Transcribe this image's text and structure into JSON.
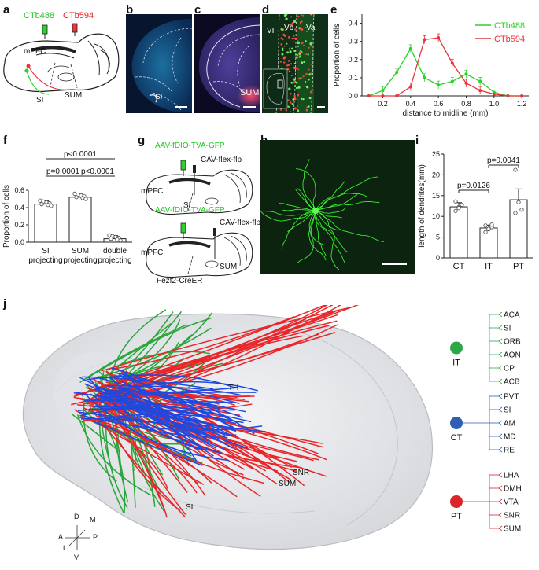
{
  "panels": {
    "a": "a",
    "b": "b",
    "c": "c",
    "d": "d",
    "e": "e",
    "f": "f",
    "g": "g",
    "h": "h",
    "i": "i",
    "j": "j"
  },
  "panel_a": {
    "tracer_green": "CTb488",
    "tracer_red": "CTb594",
    "region_mpfc": "mPFC",
    "region_si": "SI",
    "region_sum": "SUM"
  },
  "panel_b": {
    "region": "SI"
  },
  "panel_c": {
    "region": "SUM"
  },
  "panel_d": {
    "layers": [
      "VI",
      "Vb",
      "Va"
    ]
  },
  "panel_g": {
    "virus1": "AAV-fDIO-TVA-GFP",
    "virus2": "CAV-flex-flp",
    "mpfc": "mPFC",
    "si": "SI",
    "sum": "SUM",
    "mouse_line": "Fezf2-CreER"
  },
  "panel_j": {
    "labels": {
      "th": "TH",
      "snr": "SNR",
      "sum": "SUM",
      "si": "SI"
    },
    "compass": {
      "d": "D",
      "m": "M",
      "a": "A",
      "p": "P",
      "l": "L",
      "v": "V"
    },
    "trees": [
      {
        "name": "IT",
        "color": "#2ca847",
        "targets": [
          "ACA",
          "SI",
          "ORB",
          "AON",
          "CP",
          "ACB"
        ]
      },
      {
        "name": "CT",
        "color": "#2f5fb3",
        "targets": [
          "PVT",
          "SI",
          "AM",
          "MD",
          "RE"
        ]
      },
      {
        "name": "PT",
        "color": "#d9252b",
        "targets": [
          "LHA",
          "DMH",
          "VTA",
          "SNR",
          "SUM"
        ]
      }
    ]
  },
  "chart_data": [
    {
      "panel": "e",
      "type": "line",
      "xlabel": "distance to midline (mm)",
      "ylabel": "Proportion of cells",
      "xlim": [
        0.05,
        1.25
      ],
      "ylim": [
        0,
        0.45
      ],
      "xticks": [
        "0.2",
        "0.4",
        "0.6",
        "0.8",
        "1.0",
        "1.2"
      ],
      "yticks": [
        "0.0",
        "0.1",
        "0.2",
        "0.3",
        "0.4"
      ],
      "series": [
        {
          "name": "CTb488",
          "color": "#2dd12b",
          "x": [
            0.1,
            0.2,
            0.3,
            0.4,
            0.5,
            0.6,
            0.7,
            0.8,
            0.9,
            1.0,
            1.1,
            1.2
          ],
          "y": [
            0.0,
            0.03,
            0.13,
            0.26,
            0.1,
            0.06,
            0.08,
            0.12,
            0.08,
            0.02,
            0.0,
            0.0
          ]
        },
        {
          "name": "CTb594",
          "color": "#e8343c",
          "x": [
            0.1,
            0.2,
            0.3,
            0.4,
            0.5,
            0.6,
            0.7,
            0.8,
            0.9,
            1.0,
            1.1,
            1.2
          ],
          "y": [
            0.0,
            0.0,
            0.0,
            0.05,
            0.31,
            0.32,
            0.18,
            0.07,
            0.03,
            0.01,
            0.0,
            0.0
          ]
        }
      ]
    },
    {
      "panel": "f",
      "type": "bar",
      "ylabel": "Proportion of cells",
      "ylim": [
        0,
        0.6
      ],
      "yticks": [
        "0.0",
        "0.2",
        "0.4",
        "0.6"
      ],
      "categories": [
        "SI projecting",
        "SUM projecting",
        "double projecting"
      ],
      "values": [
        0.44,
        0.52,
        0.04
      ],
      "sig": [
        "p<0.0001",
        "p=0.0001",
        "p<0.0001"
      ]
    },
    {
      "panel": "i",
      "type": "bar",
      "ylabel": "length of dendrites(mm)",
      "ylim": [
        0,
        25
      ],
      "yticks": [
        "0",
        "5",
        "10",
        "15",
        "20",
        "25"
      ],
      "categories": [
        "CT",
        "IT",
        "PT"
      ],
      "values": [
        12.3,
        7.2,
        14.0
      ],
      "sig": [
        "p=0.0126",
        "p=0.0041"
      ]
    }
  ]
}
